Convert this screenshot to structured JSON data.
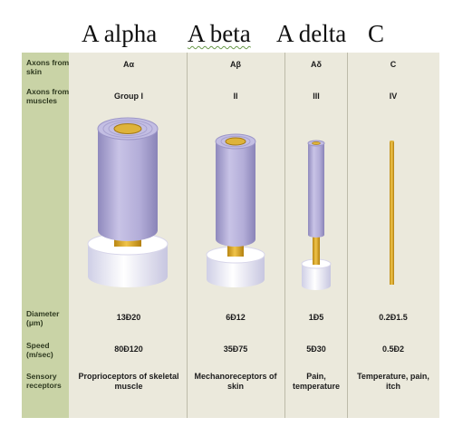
{
  "caption": {
    "a_alpha": "A alpha",
    "a_beta": "A beta",
    "a_delta": "A delta",
    "c": "C"
  },
  "row_labels": {
    "axons_skin": "Axons from skin",
    "axons_muscles": "Axons from muscles",
    "diameter": "Diameter (μm)",
    "speed": "Speed (m/sec)",
    "sensory": "Sensory receptors"
  },
  "columns": [
    {
      "skin": "Aα",
      "muscle": "Group I",
      "diameter": "13Ð20",
      "speed": "80Ð120",
      "receptors": "Proprioceptors of skeletal muscle"
    },
    {
      "skin": "Aβ",
      "muscle": "II",
      "diameter": "6Ð12",
      "speed": "35Ð75",
      "receptors": "Mechanoreceptors of skin"
    },
    {
      "skin": "Aδ",
      "muscle": "III",
      "diameter": "1Ð5",
      "speed": "5Ð30",
      "receptors": "Pain, temperature"
    },
    {
      "skin": "C",
      "muscle": "IV",
      "diameter": "0.2Ð1.5",
      "speed": "0.5Ð2",
      "receptors": "Temperature, pain, itch"
    }
  ],
  "colors": {
    "panel": "#ebe9dc",
    "label_column": "#c9d3a6",
    "myelin": "#b7b2d8",
    "axon": "#d9a52a",
    "cell_body": "#f7f7fb"
  }
}
